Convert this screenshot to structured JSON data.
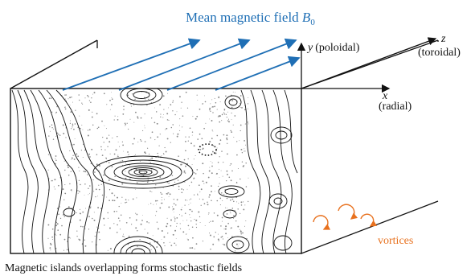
{
  "title": {
    "text": "Mean magnetic field ",
    "symbol": "B",
    "subscript": "0"
  },
  "axes": {
    "y": {
      "symbol": "y",
      "name": "(poloidal)"
    },
    "z": {
      "symbol": "z",
      "name": "(toroidal)"
    },
    "x": {
      "symbol": "x",
      "name": "(radial)"
    }
  },
  "vortices_label": "vortices",
  "caption": "Magnetic islands overlapping forms stochastic fields",
  "colors": {
    "field_lines": "#1f6fb5",
    "vortices": "#e8711e",
    "contours": "#111111",
    "stochastic_dots": "#888888"
  }
}
